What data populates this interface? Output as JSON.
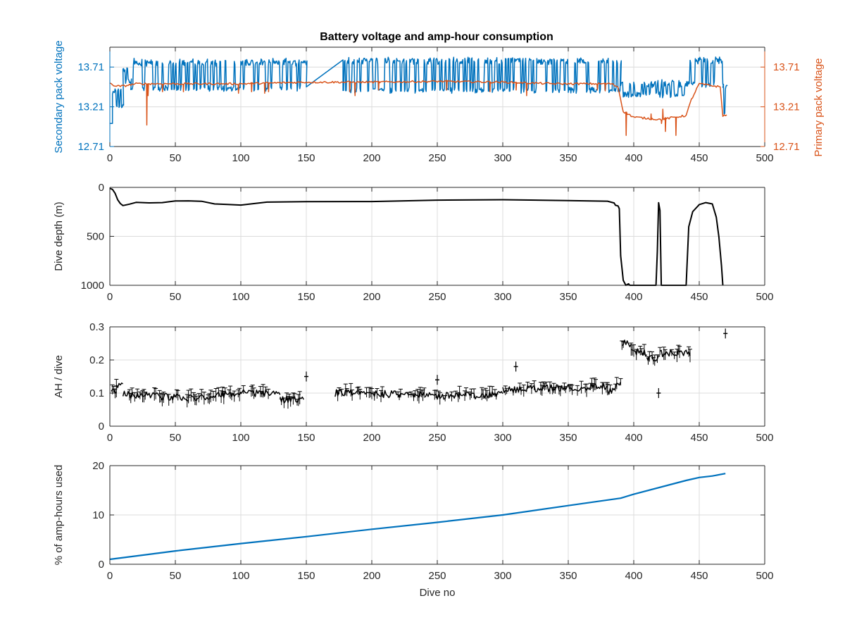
{
  "figure_title": "Battery voltage and amp-hour consumption",
  "colors": {
    "secondary": "#0072BD",
    "primary": "#D95319",
    "black": "#000000",
    "axis": "#262626",
    "grid": "#dcdcdc"
  },
  "chart_data": [
    {
      "id": "voltage",
      "type": "line",
      "xlabel": "",
      "ylabel_left": "Secondary pack voltage",
      "ylabel_right": "Primary pack voltage",
      "xlim": [
        0,
        500
      ],
      "ylim_left": [
        12.71,
        13.96
      ],
      "ylim_right": [
        12.71,
        13.96
      ],
      "xticks": [
        0,
        50,
        100,
        150,
        200,
        250,
        300,
        350,
        400,
        450,
        500
      ],
      "yticks_left": [
        12.71,
        13.21,
        13.71
      ],
      "yticks_right": [
        12.71,
        13.21,
        13.71
      ],
      "ytick_labels_left": [
        "12.71",
        "13.21",
        "13.71"
      ],
      "ytick_labels_right": [
        "12.71",
        "13.21",
        "13.71"
      ],
      "grid": true,
      "series": [
        {
          "axis": "left",
          "color": "#0072BD",
          "description": "secondary pack voltage, rapid oscillations",
          "segments": [
            {
              "x0": 0,
              "x1": 2,
              "low": 13.0,
              "high": 13.0
            },
            {
              "x0": 2,
              "x1": 10,
              "low": 13.18,
              "high": 13.45
            },
            {
              "x0": 10,
              "x1": 16,
              "low": 13.5,
              "high": 13.72
            },
            {
              "x0": 16,
              "x1": 150,
              "low": 13.4,
              "high": 13.8
            },
            {
              "x0": 150,
              "x1": 178,
              "low": 13.46,
              "high": 13.8,
              "ramp": true
            },
            {
              "x0": 178,
              "x1": 390,
              "low": 13.38,
              "high": 13.82
            },
            {
              "x0": 390,
              "x1": 440,
              "low": 13.32,
              "high": 13.53
            },
            {
              "x0": 440,
              "x1": 468,
              "low": 13.45,
              "high": 13.82
            },
            {
              "x0": 468,
              "x1": 471,
              "low": 13.1,
              "high": 13.5
            }
          ]
        },
        {
          "axis": "right",
          "color": "#D95319",
          "description": "primary pack voltage",
          "points": [
            [
              0,
              13.5
            ],
            [
              5,
              13.47
            ],
            [
              10,
              13.47
            ],
            [
              20,
              13.5
            ],
            [
              50,
              13.5
            ],
            [
              100,
              13.5
            ],
            [
              150,
              13.52
            ],
            [
              200,
              13.52
            ],
            [
              250,
              13.53
            ],
            [
              300,
              13.52
            ],
            [
              340,
              13.5
            ],
            [
              383,
              13.5
            ],
            [
              388,
              13.46
            ],
            [
              392,
              13.15
            ],
            [
              400,
              13.08
            ],
            [
              420,
              13.05
            ],
            [
              440,
              13.1
            ],
            [
              444,
              13.3
            ],
            [
              450,
              13.5
            ],
            [
              458,
              13.48
            ],
            [
              466,
              13.46
            ],
            [
              468,
              13.1
            ],
            [
              471,
              13.1
            ]
          ],
          "dips": [
            [
              28,
              12.98
            ],
            [
              29,
              13.35
            ],
            [
              40,
              13.4
            ],
            [
              56,
              13.4
            ],
            [
              98,
              13.38
            ],
            [
              108,
              13.4
            ],
            [
              118,
              13.38
            ],
            [
              121,
              13.4
            ],
            [
              183,
              13.4
            ],
            [
              187,
              13.35
            ],
            [
              205,
              13.42
            ],
            [
              257,
              13.42
            ],
            [
              290,
              13.4
            ],
            [
              310,
              13.42
            ],
            [
              318,
              13.35
            ],
            [
              372,
              13.42
            ],
            [
              378,
              13.41
            ],
            [
              394,
              12.85
            ],
            [
              413,
              13.12
            ],
            [
              421,
              13.0
            ],
            [
              422,
              13.18
            ],
            [
              424,
              12.9
            ],
            [
              432,
              12.85
            ]
          ]
        }
      ]
    },
    {
      "id": "depth",
      "type": "line",
      "xlabel": "",
      "ylabel": "Dive depth (m)",
      "xlim": [
        0,
        500
      ],
      "ylim": [
        0,
        1000
      ],
      "reversed_y": true,
      "xticks": [
        0,
        50,
        100,
        150,
        200,
        250,
        300,
        350,
        400,
        450,
        500
      ],
      "yticks": [
        0,
        500,
        1000
      ],
      "grid": true,
      "series": [
        {
          "color": "#000000",
          "points": [
            [
              0,
              10
            ],
            [
              2,
              20
            ],
            [
              4,
              60
            ],
            [
              6,
              130
            ],
            [
              8,
              170
            ],
            [
              10,
              180
            ],
            [
              15,
              170
            ],
            [
              20,
              155
            ],
            [
              30,
              155
            ],
            [
              40,
              150
            ],
            [
              50,
              145
            ],
            [
              60,
              140
            ],
            [
              70,
              145
            ],
            [
              80,
              165
            ],
            [
              90,
              180
            ],
            [
              100,
              175
            ],
            [
              120,
              155
            ],
            [
              150,
              150
            ],
            [
              200,
              140
            ],
            [
              250,
              135
            ],
            [
              300,
              130
            ],
            [
              350,
              130
            ],
            [
              380,
              135
            ],
            [
              385,
              165
            ],
            [
              386,
              180
            ],
            [
              388,
              185
            ],
            [
              389,
              220
            ],
            [
              390,
              700
            ],
            [
              392,
              950
            ],
            [
              394,
              1000
            ],
            [
              396,
              985
            ],
            [
              397,
              1000
            ],
            [
              417,
              1000
            ],
            [
              418,
              650
            ],
            [
              419,
              160
            ],
            [
              420,
              230
            ],
            [
              421,
              1000
            ],
            [
              440,
              1000
            ],
            [
              442,
              400
            ],
            [
              445,
              250
            ],
            [
              450,
              180
            ],
            [
              455,
              160
            ],
            [
              460,
              170
            ],
            [
              463,
              300
            ],
            [
              465,
              500
            ],
            [
              467,
              800
            ],
            [
              468,
              1000
            ]
          ]
        }
      ]
    },
    {
      "id": "ah",
      "type": "scatter",
      "xlabel": "",
      "ylabel": "AH / dive",
      "xlim": [
        0,
        500
      ],
      "ylim": [
        0,
        0.3
      ],
      "xticks": [
        0,
        50,
        100,
        150,
        200,
        250,
        300,
        350,
        400,
        450,
        500
      ],
      "yticks": [
        0,
        0.1,
        0.2,
        0.3
      ],
      "ytick_labels": [
        "0",
        "0.1",
        "0.2",
        "0.3"
      ],
      "grid": true,
      "series": [
        {
          "color": "#000000",
          "errorbars": true,
          "segments": [
            {
              "x0": 1,
              "x1": 5,
              "y0": 0.1,
              "y1": 0.11
            },
            {
              "x0": 5,
              "x1": 10,
              "y0": 0.12,
              "y1": 0.12
            },
            {
              "x0": 10,
              "x1": 60,
              "y0": 0.095,
              "y1": 0.085
            },
            {
              "x0": 60,
              "x1": 100,
              "y0": 0.085,
              "y1": 0.1
            },
            {
              "x0": 100,
              "x1": 130,
              "y0": 0.1,
              "y1": 0.1
            },
            {
              "x0": 130,
              "x1": 148,
              "y0": 0.08,
              "y1": 0.08
            },
            {
              "x0": 172,
              "x1": 240,
              "y0": 0.1,
              "y1": 0.095
            },
            {
              "x0": 240,
              "x1": 300,
              "y0": 0.09,
              "y1": 0.095
            },
            {
              "x0": 300,
              "x1": 380,
              "y0": 0.11,
              "y1": 0.12
            },
            {
              "x0": 380,
              "x1": 390,
              "y0": 0.1,
              "y1": 0.13
            },
            {
              "x0": 391,
              "x1": 398,
              "y0": 0.25,
              "y1": 0.25
            },
            {
              "x0": 398,
              "x1": 410,
              "y0": 0.23,
              "y1": 0.22
            },
            {
              "x0": 410,
              "x1": 420,
              "y0": 0.2,
              "y1": 0.21
            },
            {
              "x0": 420,
              "x1": 443,
              "y0": 0.22,
              "y1": 0.22
            }
          ],
          "isolated": [
            [
              150,
              0.15
            ],
            [
              470,
              0.28
            ],
            [
              310,
              0.18
            ],
            [
              250,
              0.14
            ],
            [
              419,
              0.1
            ]
          ]
        }
      ]
    },
    {
      "id": "ahused",
      "type": "line",
      "xlabel": "Dive no",
      "ylabel": "% of amp-hours used",
      "xlim": [
        0,
        500
      ],
      "ylim": [
        0,
        20
      ],
      "xticks": [
        0,
        50,
        100,
        150,
        200,
        250,
        300,
        350,
        400,
        450,
        500
      ],
      "yticks": [
        0,
        10,
        20
      ],
      "grid": true,
      "series": [
        {
          "color": "#0072BD",
          "points": [
            [
              0,
              1.0
            ],
            [
              50,
              2.7
            ],
            [
              100,
              4.2
            ],
            [
              150,
              5.6
            ],
            [
              200,
              7.1
            ],
            [
              250,
              8.5
            ],
            [
              300,
              10.0
            ],
            [
              350,
              11.9
            ],
            [
              390,
              13.4
            ],
            [
              400,
              14.2
            ],
            [
              440,
              17.0
            ],
            [
              450,
              17.6
            ],
            [
              460,
              17.9
            ],
            [
              470,
              18.4
            ]
          ]
        }
      ]
    }
  ]
}
